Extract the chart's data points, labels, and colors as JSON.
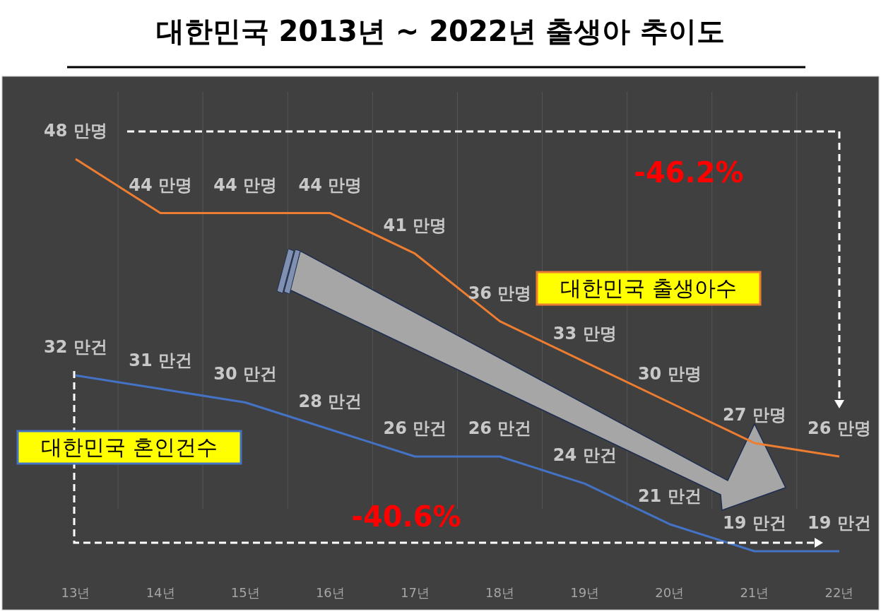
{
  "chart_data": {
    "type": "line",
    "title": "대한민국 2013년 ~ 2022년 출생아 추이도",
    "categories": [
      "13년",
      "14년",
      "15년",
      "16년",
      "17년",
      "18년",
      "19년",
      "20년",
      "21년",
      "22년"
    ],
    "series": [
      {
        "name": "대한민국 출생아수",
        "color": "#ed7d31",
        "values": [
          48,
          44,
          44,
          44,
          41,
          36,
          33,
          30,
          27,
          26
        ],
        "value_labels": [
          "48 만명",
          "44 만명",
          "44 만명",
          "44 만명",
          "41 만명",
          "36 만명",
          "33 만명",
          "30 만명",
          "27 만명",
          "26 만명"
        ]
      },
      {
        "name": "대한민국 혼인건수",
        "color": "#4472c4",
        "values": [
          32,
          31,
          30,
          28,
          26,
          26,
          24,
          21,
          19,
          19
        ],
        "value_labels": [
          "32 만건",
          "31 만건",
          "30 만건",
          "28 만건",
          "26 만건",
          "26 만건",
          "24 만건",
          "21 만건",
          "19 만건",
          "19 만건"
        ]
      }
    ],
    "tick_labels": "x",
    "grid": "x",
    "legend": false,
    "marker": "none",
    "line_style": "solid",
    "annotations": [
      "-46.2%",
      "-40.6%"
    ]
  }
}
